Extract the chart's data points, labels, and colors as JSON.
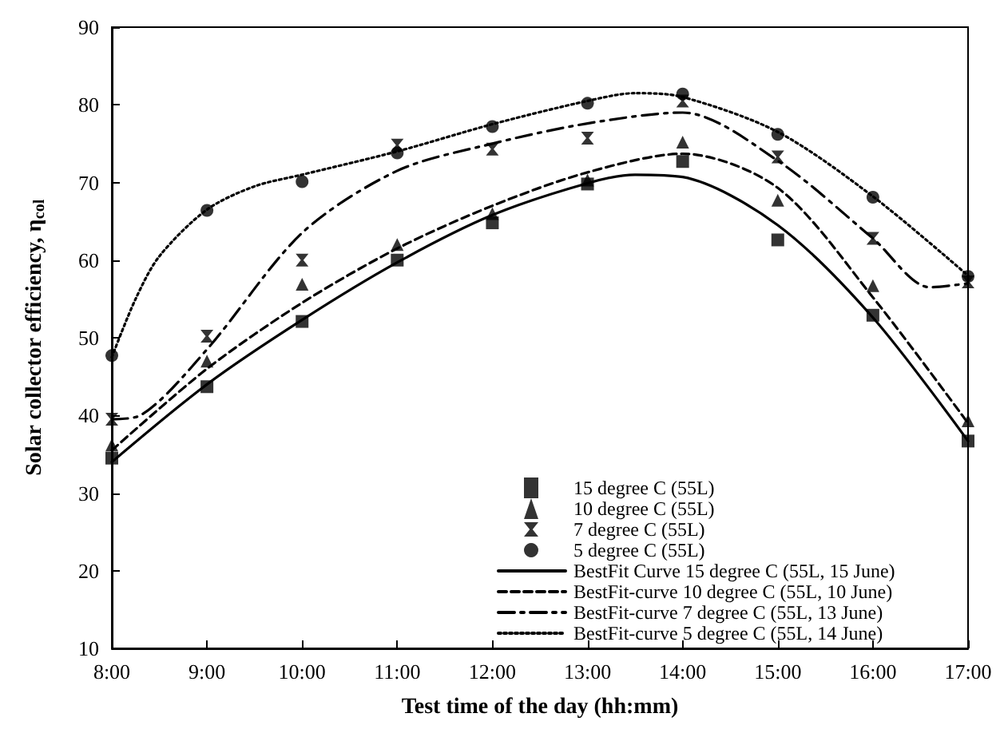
{
  "chart_data": {
    "type": "scatter",
    "xlabel": "Test time of the day (hh:mm)",
    "ylabel": "Solar collector efficiency, η$_{col}$",
    "x": [
      8,
      9,
      10,
      11,
      12,
      13,
      14,
      15,
      16,
      17
    ],
    "xlim": [
      8,
      17
    ],
    "xticks": [
      {
        "value": 8,
        "label": "8:00"
      },
      {
        "value": 9,
        "label": "9:00"
      },
      {
        "value": 10,
        "label": "10:00"
      },
      {
        "value": 11,
        "label": "11:00"
      },
      {
        "value": 12,
        "label": "12:00"
      },
      {
        "value": 13,
        "label": "13:00"
      },
      {
        "value": 14,
        "label": "14:00"
      },
      {
        "value": 15,
        "label": "15:00"
      },
      {
        "value": 16,
        "label": "16:00"
      },
      {
        "value": 17,
        "label": "17:00"
      }
    ],
    "ylim": [
      10,
      90
    ],
    "yticks": [
      10,
      20,
      30,
      40,
      50,
      60,
      70,
      80,
      90
    ],
    "grid": false,
    "legend": "bottom right",
    "series": [
      {
        "name": "15 degree C (55L)",
        "color": "#000000",
        "marker": "square",
        "values": [
          34.5,
          43.7,
          52.1,
          60,
          64.8,
          69.8,
          72.7,
          62.6,
          52.9,
          36.7
        ]
      },
      {
        "name": "10 degree C (55L)",
        "color": "#000000",
        "marker": "triangle",
        "values": [
          36.2,
          47,
          56.9,
          62,
          66,
          70.3,
          75.2,
          67.7,
          56.7,
          39.3
        ]
      },
      {
        "name": "7 degree C (55L)",
        "color": "#000000",
        "marker": "cross",
        "values": [
          39.5,
          50.2,
          60,
          74.8,
          74.3,
          75.7,
          80.5,
          73.3,
          62.8,
          57.2
        ]
      },
      {
        "name": "5 degree C (55L)",
        "color": "#000000",
        "marker": "circle",
        "values": [
          47.7,
          66.4,
          70.1,
          73.8,
          77.2,
          80.2,
          81.4,
          76.2,
          68.1,
          57.9
        ]
      },
      {
        "name": "BestFit Curve 15 degree C (55L, 15 June)",
        "type": "line",
        "color": "#000000",
        "line_style": "solid",
        "marker": "none",
        "x": [
          8,
          9,
          10,
          11,
          12,
          13,
          13.5,
          14,
          15,
          16,
          17
        ],
        "values": [
          34,
          44,
          52.3,
          59.7,
          65.8,
          69.9,
          71,
          70.7,
          64.5,
          52.6,
          36.7
        ]
      },
      {
        "name": "BestFit-curve 10 degree C (55L, 10 June)",
        "type": "line",
        "color": "#000000",
        "line_style": "dashed",
        "marker": "none",
        "x": [
          8,
          9,
          10,
          11,
          12,
          13,
          14,
          15,
          16,
          17
        ],
        "values": [
          35.5,
          46,
          54.5,
          61.5,
          67,
          71.3,
          73.7,
          69.3,
          55.2,
          39
        ]
      },
      {
        "name": "BestFit-curve 7 degree C (55L, 13 June)",
        "type": "line",
        "color": "#000000",
        "line_style": "dashdot",
        "marker": "none",
        "x": [
          8,
          8.3,
          9,
          10,
          11,
          12,
          13,
          14,
          15,
          16,
          16.6,
          17
        ],
        "values": [
          39.5,
          40,
          48.5,
          63.5,
          71.5,
          75,
          77.6,
          79,
          72.8,
          62.8,
          56.5,
          57
        ]
      },
      {
        "name": "BestFit-curve 5 degree C (55L, 14 June)",
        "type": "line",
        "color": "#000000",
        "line_style": "dotted",
        "marker": "none",
        "x": [
          8,
          8.25,
          8.5,
          9,
          9.5,
          10,
          11,
          12,
          13,
          13.5,
          14,
          15,
          16,
          17
        ],
        "values": [
          47.5,
          55,
          60.5,
          66.5,
          69.5,
          71,
          74,
          77.5,
          80.5,
          81.5,
          81,
          76.5,
          68.2,
          58
        ]
      }
    ]
  }
}
